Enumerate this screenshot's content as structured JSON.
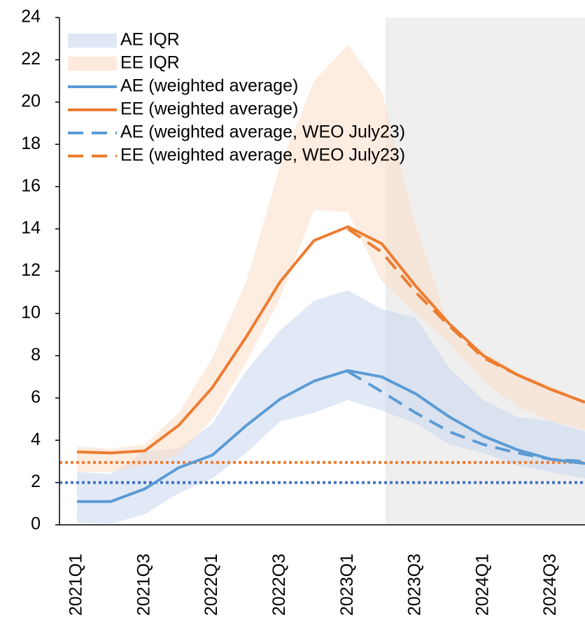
{
  "chart_data": {
    "type": "line",
    "categories": [
      "2021Q1",
      null,
      "2021Q3",
      null,
      "2022Q1",
      null,
      "2022Q3",
      null,
      "2023Q1",
      null,
      "2023Q3",
      null,
      "2024Q1",
      null,
      "2024Q3",
      null
    ],
    "ylim": [
      0,
      24
    ],
    "yticks": [
      0,
      2,
      4,
      6,
      8,
      10,
      12,
      14,
      16,
      18,
      20,
      22,
      24
    ],
    "bands": [
      {
        "name": "AE IQR",
        "color": "#c9d7ef",
        "low": [
          0.1,
          0.05,
          0.5,
          1.5,
          2.2,
          3.4,
          4.9,
          5.3,
          5.9,
          5.4,
          4.8,
          3.8,
          3.4,
          2.8,
          2.5,
          2.2
        ],
        "high": [
          2.5,
          2.4,
          3.5,
          3.6,
          4.8,
          7.3,
          9.2,
          10.6,
          11.1,
          10.2,
          9.8,
          7.4,
          5.9,
          5.1,
          4.9,
          4.4
        ]
      },
      {
        "name": "EE IQR",
        "color": "#fbdcc6",
        "low": [
          2.5,
          2.5,
          2.8,
          3.3,
          5.0,
          7.7,
          10.7,
          14.9,
          14.8,
          11.5,
          10.0,
          8.6,
          6.8,
          5.6,
          4.9,
          4.5
        ],
        "high": [
          3.7,
          3.6,
          3.8,
          5.3,
          7.9,
          11.5,
          17.0,
          21.0,
          22.7,
          20.5,
          14.2,
          9.3,
          8.2,
          7.2,
          6.6,
          5.8
        ]
      }
    ],
    "series": [
      {
        "name": "AE (weighted average)",
        "color": "#5b9bd5",
        "dash": false,
        "values": [
          1.1,
          1.1,
          1.7,
          2.7,
          3.3,
          4.7,
          5.95,
          6.8,
          7.3,
          7.0,
          6.2,
          5.1,
          4.2,
          3.55,
          3.1,
          2.9
        ]
      },
      {
        "name": "EE (weighted average)",
        "color": "#ed7d31",
        "dash": false,
        "values": [
          3.45,
          3.4,
          3.5,
          4.7,
          6.5,
          8.9,
          11.5,
          13.45,
          14.1,
          13.3,
          11.3,
          9.5,
          8.0,
          7.1,
          6.4,
          5.8
        ]
      },
      {
        "name": "AE (weighted average, WEO July23)",
        "color": "#5b9bd5",
        "dash": true,
        "values": [
          null,
          null,
          null,
          null,
          null,
          null,
          null,
          null,
          7.25,
          6.3,
          5.3,
          4.4,
          3.8,
          3.4,
          3.1,
          3.0
        ]
      },
      {
        "name": "EE (weighted average, WEO July23)",
        "color": "#ed7d31",
        "dash": true,
        "values": [
          null,
          null,
          null,
          null,
          null,
          null,
          null,
          null,
          14.0,
          12.9,
          11.0,
          9.4,
          7.9,
          7.1,
          6.4,
          5.8
        ]
      }
    ],
    "reference_lines": [
      {
        "value": 2.95,
        "color": "#ed7d31"
      },
      {
        "value": 2.0,
        "color": "#4472c4"
      }
    ]
  }
}
